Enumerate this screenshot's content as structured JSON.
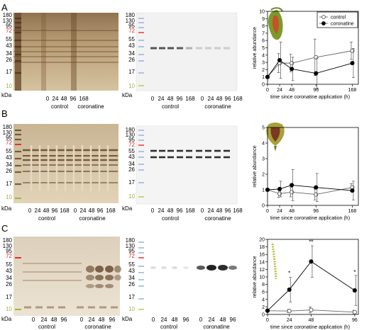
{
  "panels": [
    {
      "letter": "A",
      "ladder": [
        "180",
        "130",
        "95",
        "72",
        "55",
        "43",
        "34",
        "26",
        "17",
        "10"
      ],
      "ladder_red": "72",
      "ladder_green": "10",
      "unit": "kDa",
      "gel_lanes": [
        "0",
        "24",
        "48",
        "96",
        "168",
        "0",
        "24",
        "48",
        "96",
        "168"
      ],
      "group_labels": [
        "control",
        "coronatine"
      ],
      "blot_lanes": [
        "0",
        "24",
        "48",
        "96",
        "168",
        "0",
        "24",
        "48",
        "96",
        "168"
      ]
    },
    {
      "letter": "B",
      "ladder": [
        "180",
        "130",
        "95",
        "72",
        "55",
        "43",
        "34",
        "26",
        "17",
        "10"
      ],
      "ladder_red": "72",
      "ladder_green": "10",
      "unit": "kDa",
      "gel_lanes": [
        "0",
        "24",
        "48",
        "96",
        "168",
        "0",
        "24",
        "48",
        "96",
        "168"
      ],
      "group_labels": [
        "control",
        "coronatine"
      ],
      "blot_lanes": [
        "0",
        "24",
        "48",
        "96",
        "168",
        "0",
        "24",
        "48",
        "96",
        "168"
      ]
    },
    {
      "letter": "C",
      "ladder": [
        "180",
        "130",
        "95",
        "72",
        "55",
        "43",
        "34",
        "26",
        "17",
        "10"
      ],
      "ladder_red": "72",
      "ladder_green": "10",
      "unit": "kDa",
      "gel_lanes": [
        "0",
        "24",
        "48",
        "96",
        "0",
        "24",
        "48",
        "96"
      ],
      "group_labels": [
        "control",
        "coronatine"
      ],
      "blot_lanes": [
        "0",
        "24",
        "48",
        "96",
        "0",
        "24",
        "48",
        "96"
      ]
    }
  ],
  "chart_data": [
    {
      "type": "line",
      "panel": "A",
      "xlabel": "time since coronatine application (h)",
      "ylabel": "relative abundance",
      "xlim": [
        0,
        180
      ],
      "ylim": [
        0,
        10
      ],
      "xticks": [
        0,
        24,
        48,
        96,
        168
      ],
      "yticks": [
        0,
        1,
        2,
        3,
        4,
        5,
        6,
        7,
        8,
        9,
        10
      ],
      "legend": "top-right",
      "series": [
        {
          "name": "control",
          "marker": "open-circle",
          "x": [
            0,
            24,
            48,
            96,
            168
          ],
          "values": [
            1,
            2.9,
            2.9,
            3.7,
            4.6
          ],
          "err": [
            0,
            1.3,
            1.2,
            2.5,
            1.2
          ]
        },
        {
          "name": "coronatine",
          "marker": "filled-circle",
          "x": [
            0,
            24,
            48,
            96,
            168
          ],
          "values": [
            1,
            3.3,
            2.1,
            1.5,
            2.9
          ],
          "err": [
            0,
            2.5,
            1.6,
            2.1,
            2.0
          ]
        }
      ],
      "annotations": []
    },
    {
      "type": "line",
      "panel": "B",
      "xlabel": "time since coronatine application (h)",
      "ylabel": "relative abundance",
      "xlim": [
        0,
        180
      ],
      "ylim": [
        0,
        5
      ],
      "xticks": [
        0,
        24,
        48,
        96,
        168
      ],
      "yticks": [
        0,
        1,
        2,
        3,
        4,
        5
      ],
      "series": [
        {
          "name": "control",
          "marker": "open-circle",
          "x": [
            0,
            24,
            48,
            96,
            168
          ],
          "values": [
            1,
            0.75,
            0.85,
            0.7,
            1.15
          ],
          "err": [
            0,
            0.25,
            0.3,
            0.35,
            0.25
          ]
        },
        {
          "name": "coronatine",
          "marker": "filled-circle",
          "x": [
            0,
            24,
            48,
            96,
            168
          ],
          "values": [
            1,
            1.05,
            1.3,
            1.15,
            0.95
          ],
          "err": [
            0,
            0.5,
            1.0,
            0.9,
            0.6
          ]
        }
      ],
      "annotations": []
    },
    {
      "type": "line",
      "panel": "C",
      "xlabel": "time since coronatine application (h)",
      "ylabel": "relative abundance",
      "xlim": [
        0,
        100
      ],
      "ylim": [
        0,
        20
      ],
      "xticks": [
        0,
        24,
        48,
        96
      ],
      "yticks": [
        0,
        2,
        4,
        6,
        8,
        10,
        12,
        14,
        16,
        18,
        20
      ],
      "series": [
        {
          "name": "control",
          "marker": "open-circle",
          "x": [
            0,
            24,
            48,
            96
          ],
          "values": [
            1,
            0.9,
            1.2,
            0.6
          ],
          "err": [
            0,
            0.4,
            0.8,
            0.5
          ]
        },
        {
          "name": "coronatine",
          "marker": "filled-circle",
          "x": [
            0,
            24,
            48,
            96
          ],
          "values": [
            1,
            6.6,
            14.1,
            6.4
          ],
          "err": [
            0,
            3.3,
            4.2,
            4.0
          ]
        }
      ],
      "annotations": [
        {
          "x": 24,
          "y": 10.5,
          "text": "*"
        },
        {
          "x": 48,
          "y": 18.8,
          "text": "**"
        },
        {
          "x": 96,
          "y": 10.8,
          "text": "*"
        }
      ]
    }
  ]
}
